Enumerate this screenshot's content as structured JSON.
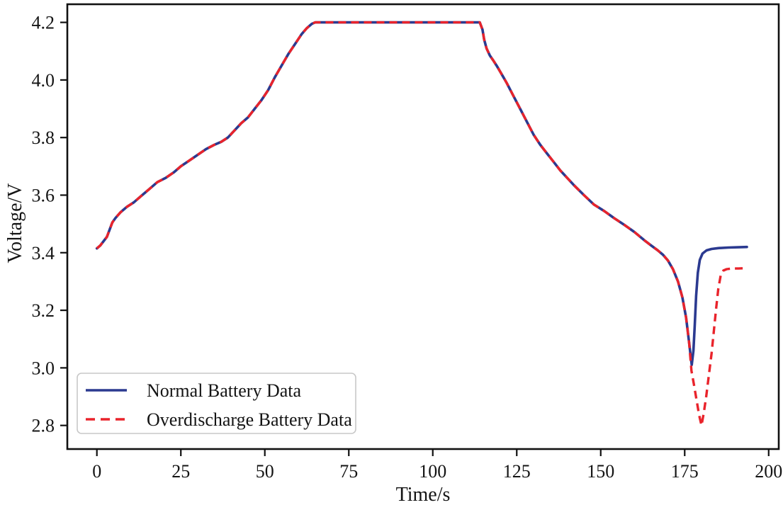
{
  "chart_data": {
    "type": "line",
    "title": "",
    "xlabel": "Time/s",
    "ylabel": "Voltage/V",
    "xlim": [
      -8.8,
      203.0
    ],
    "ylim": [
      2.718,
      4.263
    ],
    "xticks": [
      "0",
      "25",
      "50",
      "75",
      "100",
      "125",
      "150",
      "175",
      "200"
    ],
    "yticks": [
      "2.8",
      "3.0",
      "3.2",
      "3.4",
      "3.6",
      "3.8",
      "4.0",
      "4.2"
    ],
    "grid": false,
    "legend_position": "lower left",
    "series": [
      {
        "name": "Normal Battery Data",
        "color": "#2b3a90",
        "style": "solid",
        "points": [
          [
            0,
            3.415
          ],
          [
            1,
            3.425
          ],
          [
            2,
            3.44
          ],
          [
            3,
            3.455
          ],
          [
            3.8,
            3.48
          ],
          [
            4.6,
            3.505
          ],
          [
            5.5,
            3.52
          ],
          [
            7,
            3.54
          ],
          [
            9,
            3.56
          ],
          [
            11,
            3.575
          ],
          [
            13,
            3.595
          ],
          [
            15.5,
            3.62
          ],
          [
            18,
            3.645
          ],
          [
            20.5,
            3.66
          ],
          [
            23,
            3.68
          ],
          [
            25,
            3.7
          ],
          [
            27.5,
            3.72
          ],
          [
            30,
            3.74
          ],
          [
            32.5,
            3.76
          ],
          [
            35,
            3.775
          ],
          [
            37,
            3.785
          ],
          [
            39,
            3.8
          ],
          [
            41,
            3.825
          ],
          [
            43,
            3.85
          ],
          [
            45,
            3.87
          ],
          [
            47,
            3.9
          ],
          [
            49,
            3.93
          ],
          [
            51,
            3.965
          ],
          [
            53,
            4.01
          ],
          [
            55,
            4.05
          ],
          [
            57,
            4.09
          ],
          [
            59,
            4.125
          ],
          [
            61,
            4.16
          ],
          [
            62.5,
            4.18
          ],
          [
            64,
            4.195
          ],
          [
            65,
            4.2
          ],
          [
            80,
            4.2
          ],
          [
            100,
            4.2
          ],
          [
            114,
            4.2
          ],
          [
            114.8,
            4.175
          ],
          [
            115.3,
            4.14
          ],
          [
            116,
            4.11
          ],
          [
            117,
            4.085
          ],
          [
            118,
            4.068
          ],
          [
            119,
            4.05
          ],
          [
            120,
            4.03
          ],
          [
            121,
            4.01
          ],
          [
            122,
            3.99
          ],
          [
            124,
            3.945
          ],
          [
            126,
            3.9
          ],
          [
            128,
            3.855
          ],
          [
            130,
            3.81
          ],
          [
            132,
            3.775
          ],
          [
            134,
            3.745
          ],
          [
            136,
            3.715
          ],
          [
            138,
            3.685
          ],
          [
            140,
            3.66
          ],
          [
            142,
            3.635
          ],
          [
            145,
            3.6
          ],
          [
            148,
            3.567
          ],
          [
            151,
            3.545
          ],
          [
            154,
            3.52
          ],
          [
            157,
            3.497
          ],
          [
            160,
            3.472
          ],
          [
            163,
            3.443
          ],
          [
            165,
            3.425
          ],
          [
            167,
            3.408
          ],
          [
            168.5,
            3.393
          ],
          [
            170,
            3.373
          ],
          [
            171.5,
            3.343
          ],
          [
            173,
            3.3
          ],
          [
            174.3,
            3.245
          ],
          [
            175.4,
            3.175
          ],
          [
            176.3,
            3.09
          ],
          [
            177.1,
            3.01
          ],
          [
            177.6,
            3.06
          ],
          [
            178,
            3.15
          ],
          [
            178.4,
            3.25
          ],
          [
            178.9,
            3.33
          ],
          [
            179.5,
            3.375
          ],
          [
            180.3,
            3.397
          ],
          [
            181.5,
            3.408
          ],
          [
            183,
            3.413
          ],
          [
            185,
            3.416
          ],
          [
            188,
            3.418
          ],
          [
            191,
            3.419
          ],
          [
            193.5,
            3.42
          ]
        ]
      },
      {
        "name": "Overdischarge Battery Data",
        "color": "#e9232b",
        "style": "dashed",
        "points": [
          [
            0,
            3.415
          ],
          [
            1,
            3.425
          ],
          [
            2,
            3.44
          ],
          [
            3,
            3.455
          ],
          [
            3.8,
            3.48
          ],
          [
            4.6,
            3.505
          ],
          [
            5.5,
            3.52
          ],
          [
            7,
            3.54
          ],
          [
            9,
            3.56
          ],
          [
            11,
            3.575
          ],
          [
            13,
            3.595
          ],
          [
            15.5,
            3.62
          ],
          [
            18,
            3.645
          ],
          [
            20.5,
            3.66
          ],
          [
            23,
            3.68
          ],
          [
            25,
            3.7
          ],
          [
            27.5,
            3.72
          ],
          [
            30,
            3.74
          ],
          [
            32.5,
            3.76
          ],
          [
            35,
            3.775
          ],
          [
            37,
            3.785
          ],
          [
            39,
            3.8
          ],
          [
            41,
            3.825
          ],
          [
            43,
            3.85
          ],
          [
            45,
            3.87
          ],
          [
            47,
            3.9
          ],
          [
            49,
            3.93
          ],
          [
            51,
            3.965
          ],
          [
            53,
            4.01
          ],
          [
            55,
            4.05
          ],
          [
            57,
            4.09
          ],
          [
            59,
            4.125
          ],
          [
            61,
            4.16
          ],
          [
            62.5,
            4.18
          ],
          [
            64,
            4.195
          ],
          [
            65,
            4.2
          ],
          [
            80,
            4.2
          ],
          [
            100,
            4.2
          ],
          [
            114,
            4.2
          ],
          [
            114.8,
            4.175
          ],
          [
            115.3,
            4.14
          ],
          [
            116,
            4.11
          ],
          [
            117,
            4.085
          ],
          [
            118,
            4.068
          ],
          [
            119,
            4.05
          ],
          [
            120,
            4.03
          ],
          [
            121,
            4.01
          ],
          [
            122,
            3.99
          ],
          [
            124,
            3.945
          ],
          [
            126,
            3.9
          ],
          [
            128,
            3.855
          ],
          [
            130,
            3.81
          ],
          [
            132,
            3.775
          ],
          [
            134,
            3.745
          ],
          [
            136,
            3.715
          ],
          [
            138,
            3.685
          ],
          [
            140,
            3.66
          ],
          [
            142,
            3.635
          ],
          [
            145,
            3.6
          ],
          [
            148,
            3.567
          ],
          [
            151,
            3.545
          ],
          [
            154,
            3.52
          ],
          [
            157,
            3.497
          ],
          [
            160,
            3.472
          ],
          [
            163,
            3.443
          ],
          [
            165,
            3.425
          ],
          [
            167,
            3.408
          ],
          [
            168.5,
            3.393
          ],
          [
            170,
            3.373
          ],
          [
            171.5,
            3.343
          ],
          [
            173,
            3.3
          ],
          [
            174.3,
            3.245
          ],
          [
            175.4,
            3.175
          ],
          [
            176.3,
            3.09
          ],
          [
            177,
            2.99
          ],
          [
            177.7,
            2.945
          ],
          [
            178.5,
            2.89
          ],
          [
            179.3,
            2.835
          ],
          [
            180,
            2.8
          ],
          [
            180.7,
            2.845
          ],
          [
            181.4,
            2.9
          ],
          [
            182.2,
            2.975
          ],
          [
            183,
            3.05
          ],
          [
            183.7,
            3.13
          ],
          [
            184.4,
            3.21
          ],
          [
            185,
            3.275
          ],
          [
            185.7,
            3.32
          ],
          [
            186.5,
            3.338
          ],
          [
            187.5,
            3.343
          ],
          [
            189,
            3.345
          ],
          [
            191,
            3.345
          ],
          [
            192.8,
            3.346
          ]
        ]
      }
    ]
  }
}
